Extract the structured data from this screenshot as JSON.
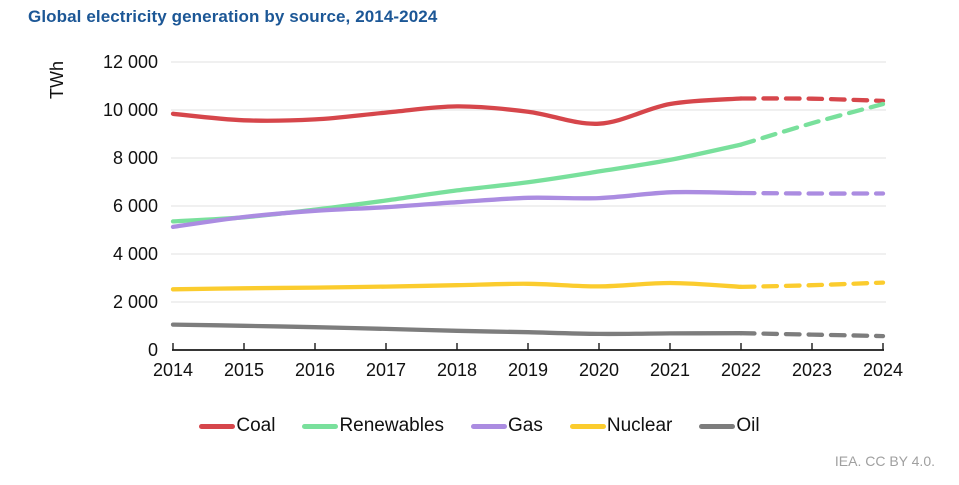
{
  "title": {
    "text": "Global electricity generation by source, 2014-2024",
    "color": "#1c5796"
  },
  "footer": {
    "text": "IEA. CC BY 4.0.",
    "color": "#a0a0a0"
  },
  "colors": {
    "grid": "#e8e8e8",
    "axis": "#1a1a1a"
  },
  "chart_data": {
    "type": "line",
    "title": "Global electricity generation by source, 2014-2024",
    "ylabel": "TWh",
    "xlabel": "",
    "units": "TWh",
    "x": [
      2014,
      2015,
      2016,
      2017,
      2018,
      2019,
      2020,
      2021,
      2022,
      2023,
      2024
    ],
    "x_tick_labels": [
      "2014",
      "2015",
      "2016",
      "2017",
      "2018",
      "2019",
      "2020",
      "2021",
      "2022",
      "2023",
      "2024"
    ],
    "y_ticks": [
      12000,
      10000,
      8000,
      6000,
      4000,
      2000,
      0
    ],
    "y_tick_labels": [
      "12 000",
      "10 000",
      "8 000",
      "6 000",
      "4 000",
      "2 000",
      "0"
    ],
    "ylim": [
      0,
      12000
    ],
    "grid": "horizontal-only",
    "legend_position": "bottom",
    "forecast_from_x": 2022,
    "forecast_line_style": "dashed",
    "series": [
      {
        "name": "Coal",
        "color": "#d6464b",
        "values": [
          9840,
          9570,
          9610,
          9890,
          10150,
          9930,
          9430,
          10250,
          10480,
          10470,
          10380
        ]
      },
      {
        "name": "Renewables",
        "color": "#79e09c",
        "values": [
          5360,
          5530,
          5850,
          6230,
          6650,
          6990,
          7440,
          7920,
          8560,
          9450,
          10250
        ]
      },
      {
        "name": "Gas",
        "color": "#ab8ce1",
        "values": [
          5130,
          5540,
          5800,
          5950,
          6160,
          6340,
          6330,
          6570,
          6540,
          6520,
          6520
        ]
      },
      {
        "name": "Nuclear",
        "color": "#fbcc2e",
        "values": [
          2530,
          2570,
          2600,
          2640,
          2700,
          2760,
          2650,
          2790,
          2630,
          2700,
          2810
        ]
      },
      {
        "name": "Oil",
        "color": "#7d7d7d",
        "values": [
          1060,
          1010,
          950,
          880,
          800,
          740,
          670,
          690,
          700,
          640,
          580
        ]
      }
    ]
  }
}
